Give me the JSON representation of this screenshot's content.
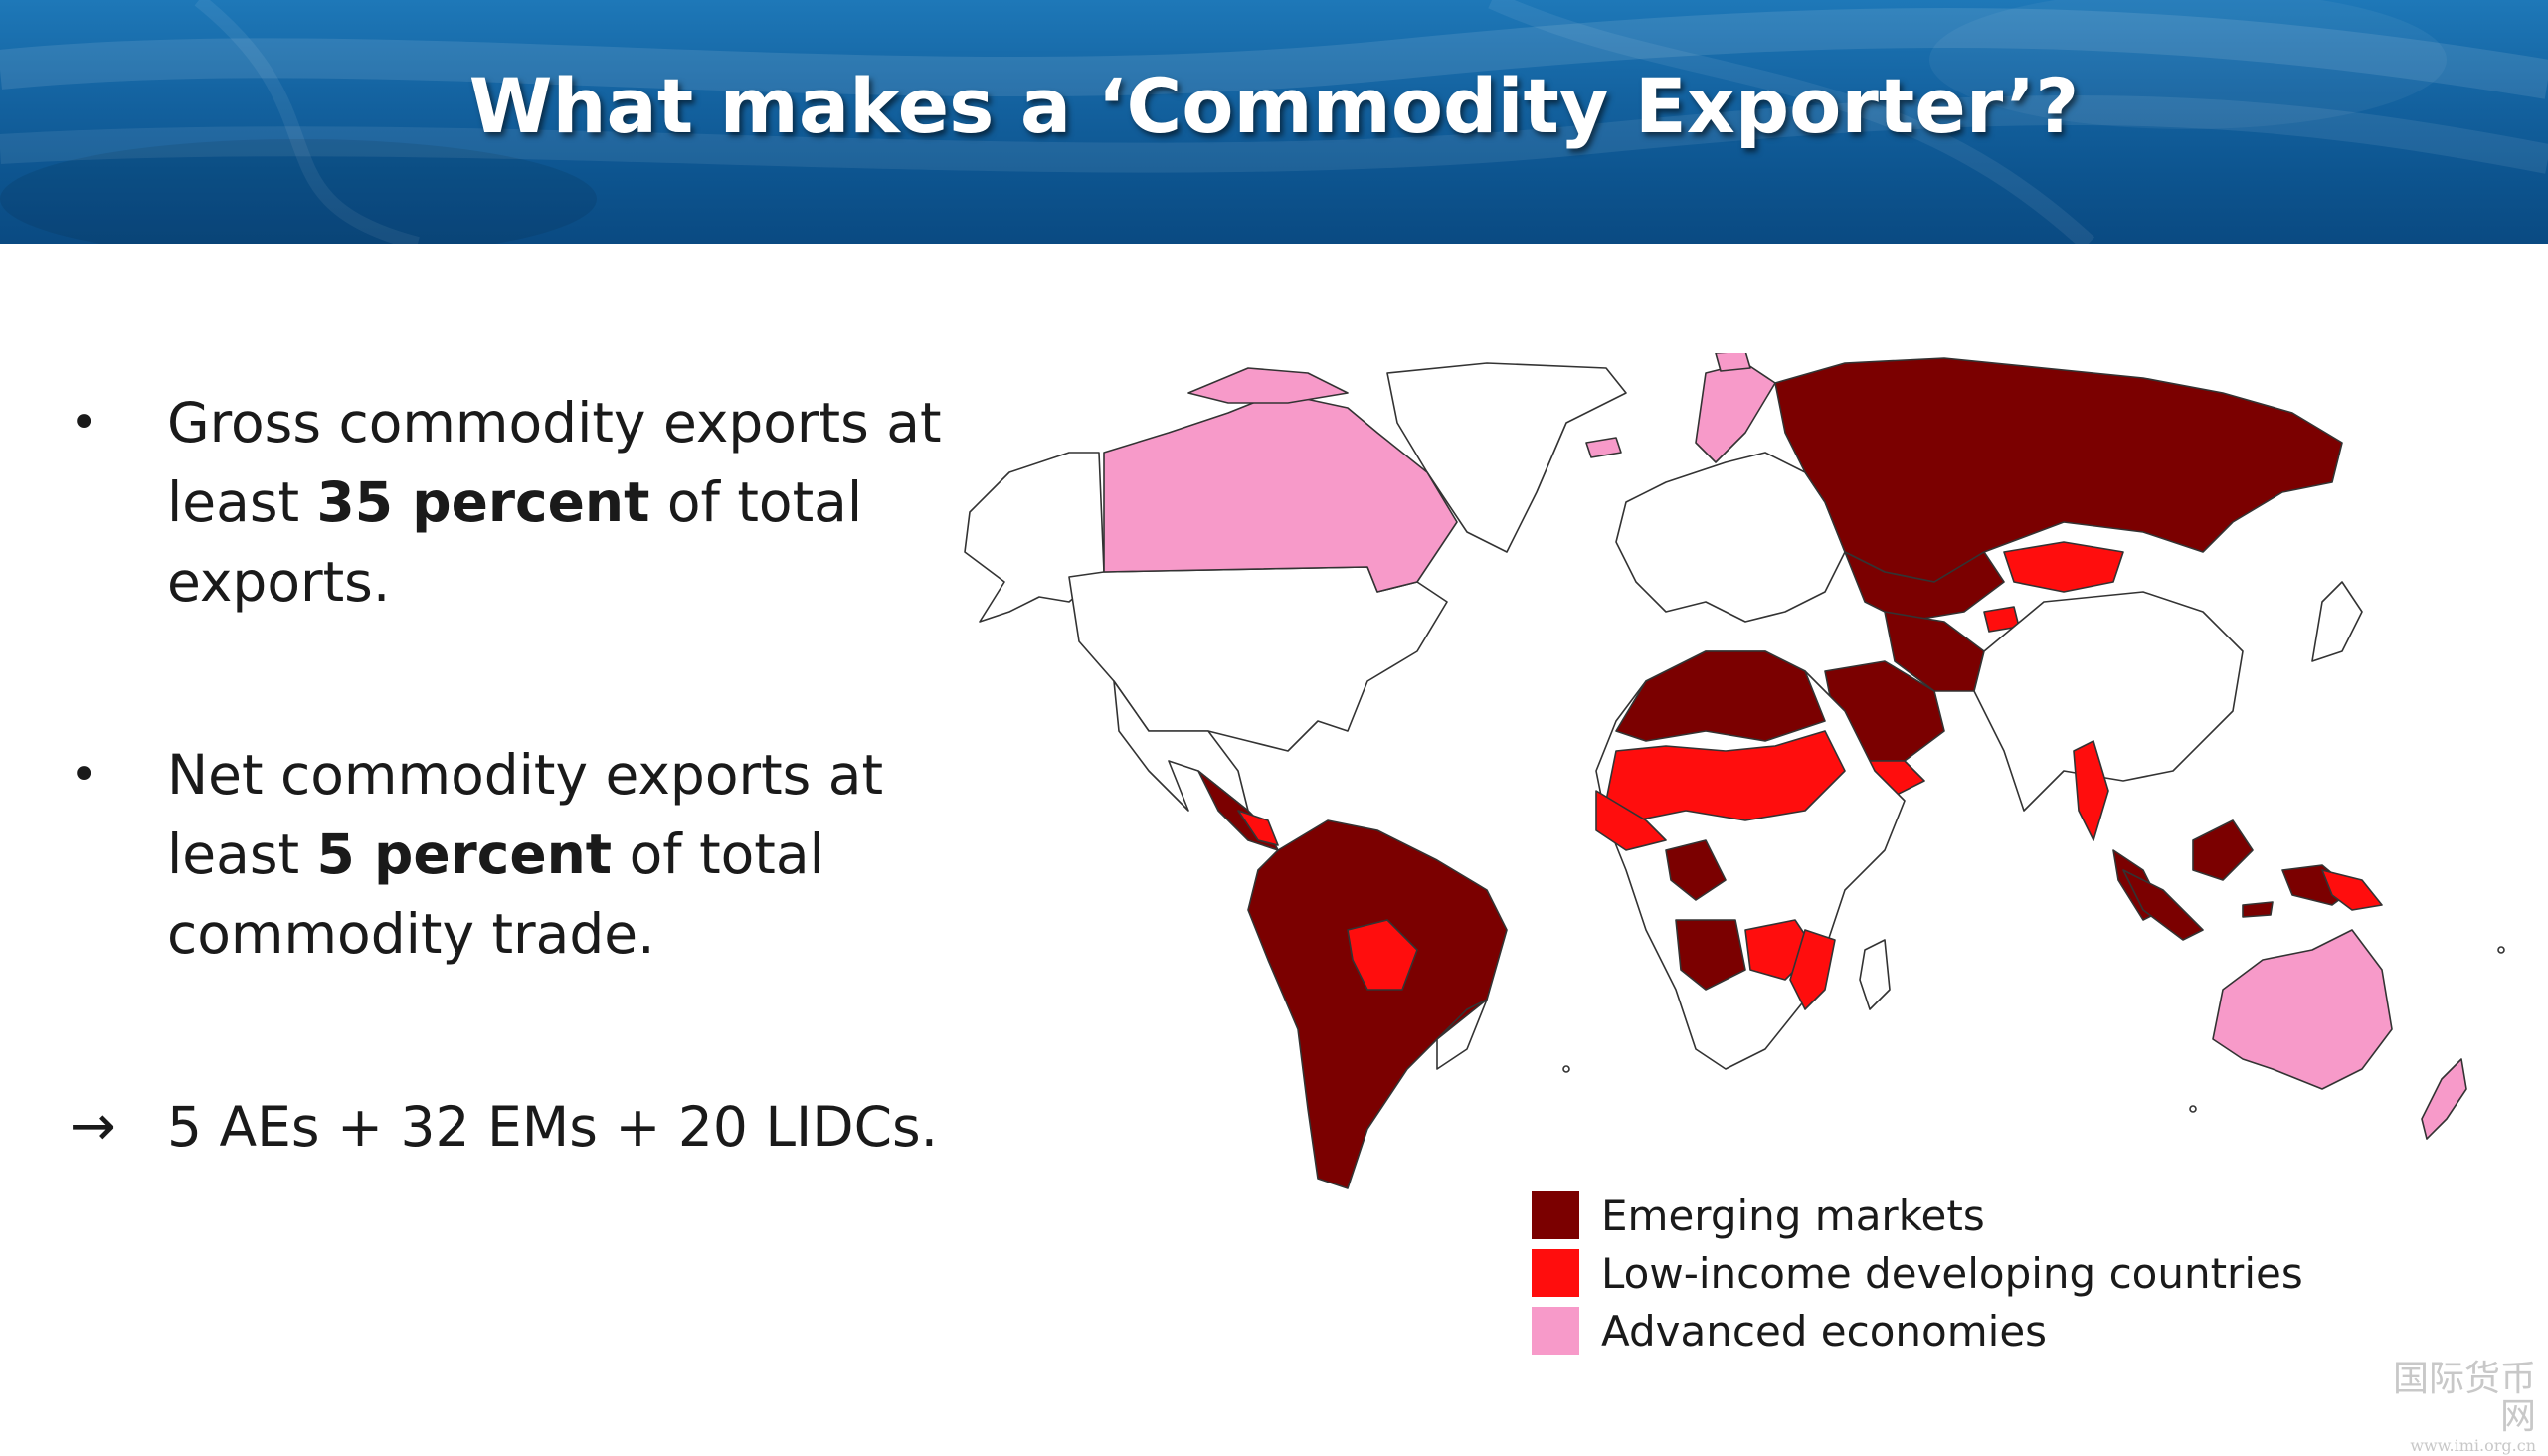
{
  "slide": {
    "title": "What makes a ‘Commodity Exporter’?"
  },
  "bullets": [
    {
      "marker": "•",
      "lines": [
        {
          "pre": "Gross commodity exports at",
          "bold": "",
          "post": ""
        },
        {
          "pre": "least ",
          "bold": "35 percent",
          "post": " of total"
        },
        {
          "pre": "exports.",
          "bold": "",
          "post": ""
        }
      ]
    },
    {
      "marker": "•",
      "lines": [
        {
          "pre": "Net commodity exports at",
          "bold": "",
          "post": ""
        },
        {
          "pre": "least ",
          "bold": "5 percent",
          "post": " of total"
        },
        {
          "pre": "commodity trade.",
          "bold": "",
          "post": ""
        }
      ]
    },
    {
      "marker": "→",
      "lines": [
        {
          "pre": "5 AEs + 32 EMs + 20 LIDCs.",
          "bold": "",
          "post": ""
        }
      ]
    }
  ],
  "legend": [
    {
      "label": "Emerging markets",
      "color": "#7b0000"
    },
    {
      "label": "Low-income developing countries",
      "color": "#ff0d0d"
    },
    {
      "label": "Advanced economies",
      "color": "#f79ac9"
    }
  ],
  "map_colors": {
    "emerging": "#7b0000",
    "lidc": "#ff0d0d",
    "advanced": "#f79ac9",
    "other": "#ffffff",
    "border": "#333333"
  },
  "watermark": {
    "text": "国际货币网",
    "url": "www.imi.org.cn"
  }
}
